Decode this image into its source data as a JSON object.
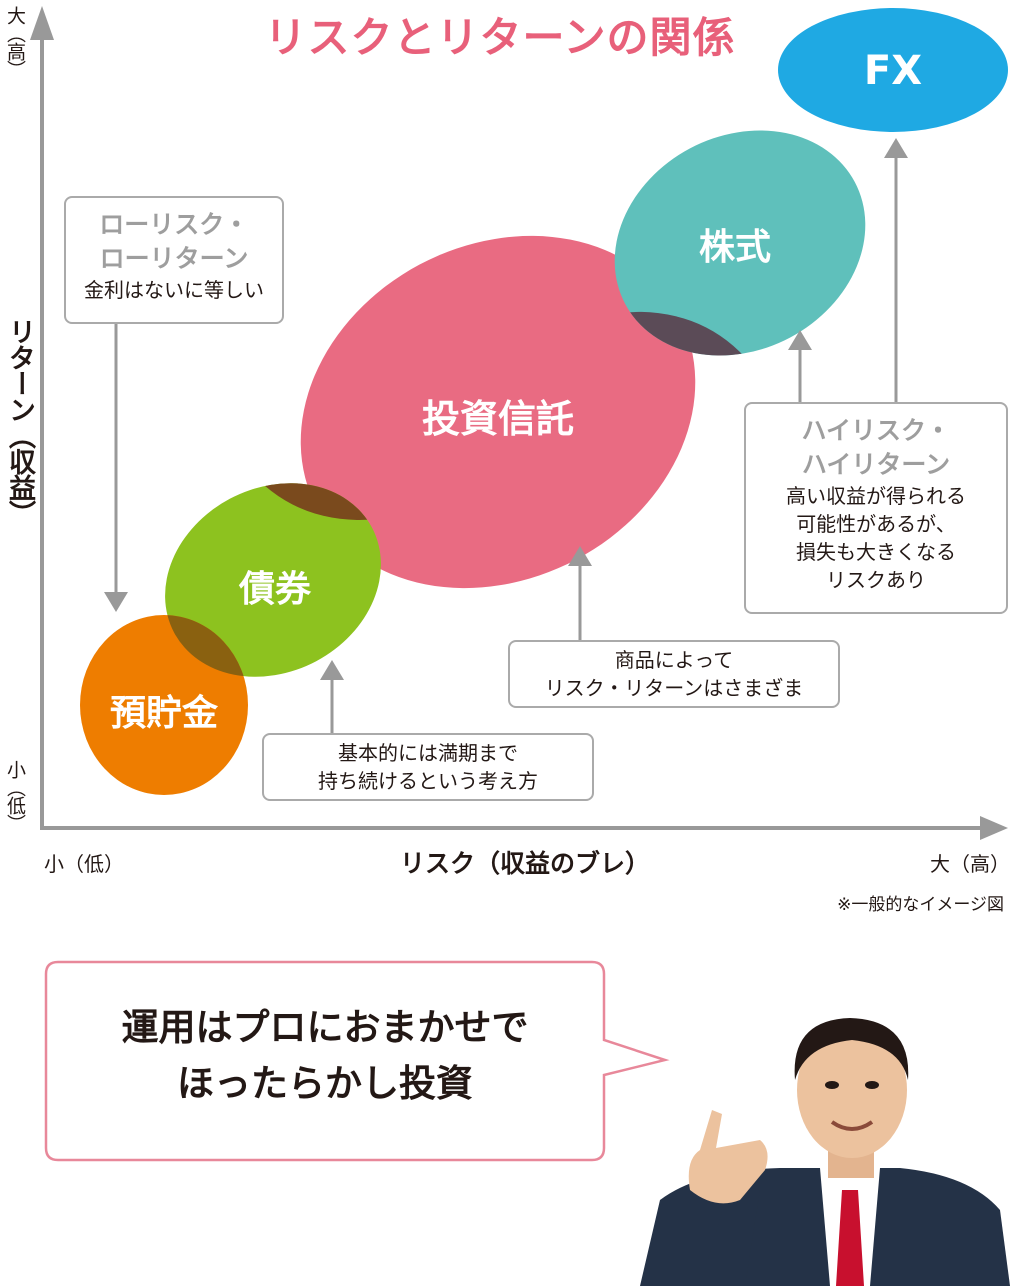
{
  "title": "リスクとリターンの関係",
  "axes": {
    "y_label": "リターン（収益）",
    "y_top": "大（高）",
    "y_bottom": "小（低）",
    "x_label": "リスク（収益のブレ）",
    "x_left": "小（低）",
    "x_right": "大（高）"
  },
  "products": {
    "deposit": "預貯金",
    "bond": "債券",
    "fund": "投資信託",
    "stock": "株式",
    "fx": "FX"
  },
  "boxes": {
    "low_risk": {
      "head1": "ローリスク・",
      "head2": "ローリターン",
      "body1": "金利はないに等しい"
    },
    "bond_note": {
      "line1": "基本的には満期まで",
      "line2": "持ち続けるという考え方"
    },
    "fund_note": {
      "line1": "商品によって",
      "line2": "リスク・リターンはさまざま"
    },
    "high_risk": {
      "head1": "ハイリスク・",
      "head2": "ハイリターン",
      "body1": "高い収益が得られる",
      "body2": "可能性があるが、",
      "body3": "損失も大きくなる",
      "body4": "リスクあり"
    }
  },
  "footnote": "※一般的なイメージ図",
  "speech": {
    "line1": "運用はプロにおまかせで",
    "line2": "ほったらかし投資"
  },
  "colors": {
    "title": "#e8607a",
    "deposit": "#ee7d00",
    "bond": "#8dc21f",
    "fund": "#e96b82",
    "stock": "#5fc0bb",
    "fx": "#1fa9e3",
    "overlap": "#5b4b57"
  }
}
